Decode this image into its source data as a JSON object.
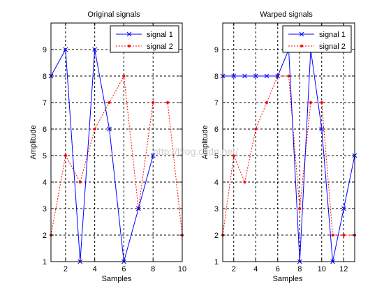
{
  "watermark": "http://blog.csdn.net/",
  "chart_data": [
    {
      "type": "line",
      "title": "Original signals",
      "xlabel": "Samples",
      "ylabel": "Amplitude",
      "xlim": [
        1,
        10
      ],
      "ylim": [
        1,
        10
      ],
      "xticks": [
        2,
        4,
        6,
        8,
        10
      ],
      "yticks": [
        1,
        2,
        3,
        4,
        5,
        6,
        7,
        8,
        9
      ],
      "grid": true,
      "legend_position": "top-right",
      "series": [
        {
          "name": "signal 1",
          "color": "#0000ff",
          "line": "solid",
          "marker": "x",
          "x": [
            1,
            2,
            3,
            4,
            5,
            6,
            7,
            8
          ],
          "y": [
            8,
            9,
            1,
            9,
            6,
            1,
            3,
            5
          ]
        },
        {
          "name": "signal 2",
          "color": "#ff0000",
          "line": "dotted",
          "marker": "dot",
          "x": [
            1,
            2,
            3,
            4,
            5,
            6,
            7,
            8,
            9,
            10
          ],
          "y": [
            2,
            5,
            4,
            6,
            7,
            8,
            3,
            7,
            7,
            2
          ]
        }
      ]
    },
    {
      "type": "line",
      "title": "Warped signals",
      "xlabel": "Samples",
      "ylabel": "Amplitude",
      "xlim": [
        1,
        13
      ],
      "ylim": [
        1,
        10
      ],
      "xticks": [
        2,
        4,
        6,
        8,
        10,
        12
      ],
      "yticks": [
        1,
        2,
        3,
        4,
        5,
        6,
        7,
        8,
        9
      ],
      "grid": true,
      "legend_position": "top-right",
      "series": [
        {
          "name": "signal 1",
          "color": "#0000ff",
          "line": "solid",
          "marker": "x",
          "x": [
            1,
            2,
            3,
            4,
            5,
            6,
            7,
            8,
            9,
            10,
            11,
            12,
            13
          ],
          "y": [
            8,
            8,
            8,
            8,
            8,
            8,
            9,
            1,
            9,
            6,
            1,
            3,
            5
          ]
        },
        {
          "name": "signal 2",
          "color": "#ff0000",
          "line": "dotted",
          "marker": "dot",
          "x": [
            1,
            2,
            3,
            4,
            5,
            6,
            7,
            8,
            9,
            10,
            11,
            12,
            13
          ],
          "y": [
            2,
            5,
            4,
            6,
            7,
            8,
            8,
            3,
            7,
            7,
            2,
            2,
            2
          ]
        }
      ]
    }
  ]
}
